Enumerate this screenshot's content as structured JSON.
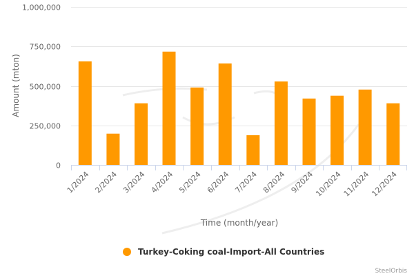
{
  "chart_data": {
    "type": "bar",
    "categories": [
      "1/2024",
      "2/2024",
      "3/2024",
      "4/2024",
      "5/2024",
      "6/2024",
      "7/2024",
      "8/2024",
      "9/2024",
      "10/2024",
      "11/2024",
      "12/2024"
    ],
    "series": [
      {
        "name": "Turkey-Coking coal-Import-All Countries",
        "color": "#ff9900",
        "values": [
          655000,
          198000,
          390000,
          717000,
          490000,
          642000,
          188000,
          528000,
          420000,
          438000,
          477000,
          390000
        ]
      }
    ],
    "title": "",
    "xlabel": "Time (month/year)",
    "ylabel": "Amount (mton)",
    "ylim": [
      0,
      1000000
    ],
    "yticks": [
      0,
      250000,
      500000,
      750000,
      1000000
    ],
    "ytick_labels": [
      "0",
      "250,000",
      "500,000",
      "750,000",
      "1,000,000"
    ],
    "grid": true,
    "legend_position": "bottom-center"
  },
  "credit": "SteelOrbis"
}
